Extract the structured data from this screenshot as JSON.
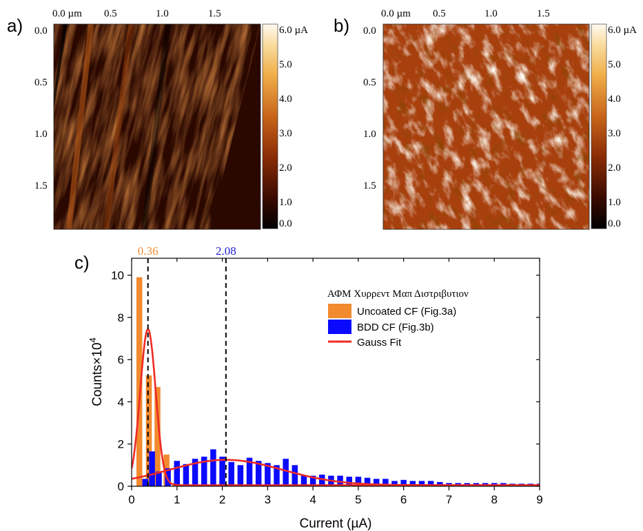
{
  "panels": {
    "a": {
      "label": "a)",
      "x_ticks": [
        "0.0 µm",
        "0.5",
        "1.0",
        "1.5"
      ],
      "y_ticks": [
        "0.0",
        "0.5",
        "1.0",
        "1.5"
      ],
      "colorbar_ticks": [
        "6.0 µA",
        "5.0",
        "4.0",
        "3.0",
        "2.0",
        "1.0",
        "0.0"
      ],
      "colorbar_values": [
        6.0,
        5.0,
        4.0,
        3.0,
        2.0,
        1.0,
        0.0
      ]
    },
    "b": {
      "label": "b)",
      "x_ticks": [
        "0.0 µm",
        "0.5",
        "1.0",
        "1.5"
      ],
      "y_ticks": [
        "0.0",
        "0.5",
        "1.0",
        "1.5"
      ],
      "colorbar_ticks": [
        "6.0 µA",
        "5.0",
        "4.0",
        "3.0",
        "2.0",
        "1.0",
        "0.0"
      ],
      "colorbar_values": [
        6.0,
        5.0,
        4.0,
        3.0,
        2.0,
        1.0,
        0.0
      ]
    },
    "c": {
      "label": "c)"
    }
  },
  "colors": {
    "uncoated": "#f28a2e",
    "bdd": "#0a0aff",
    "gauss": "#ee2a24",
    "peak_uncoated": "#f28a2e",
    "peak_bdd": "#2020d0",
    "map_dark": "#1a0500",
    "map_mid": "#a8400e",
    "map_light": "#fdf3e2"
  },
  "chart_data": {
    "type": "bar",
    "xlabel": "Current (µA)",
    "ylabel": "Counts×10",
    "ylabel_superscript": "4",
    "xlim": [
      0,
      9
    ],
    "ylim": [
      0,
      10.8
    ],
    "x_ticks": [
      0,
      1,
      2,
      3,
      4,
      5,
      6,
      7,
      8,
      9
    ],
    "y_ticks": [
      0,
      2,
      4,
      6,
      8,
      10
    ],
    "legend_title": "ΑΦΜ Χυρρεντ Μαπ Διστριβυτιον",
    "legend_position": "top-right",
    "series": [
      {
        "name": "Uncoated CF (Fig.3a)",
        "x": [
          0.17,
          0.38,
          0.57,
          0.77,
          0.97
        ],
        "values": [
          9.9,
          5.25,
          4.7,
          1.5,
          0.15
        ]
      },
      {
        "name": "BDD CF (Fig.3b)",
        "x": [
          0.3,
          0.45,
          0.6,
          0.8,
          1.0,
          1.2,
          1.4,
          1.6,
          1.8,
          2.0,
          2.2,
          2.4,
          2.6,
          2.8,
          3.0,
          3.2,
          3.4,
          3.6,
          3.8,
          4.0,
          4.2,
          4.4,
          4.6,
          4.8,
          5.0,
          5.2,
          5.4,
          5.6,
          5.8,
          6.0,
          6.2,
          6.4,
          6.6,
          6.8,
          7.0,
          7.2,
          7.4,
          7.6,
          7.8,
          8.0,
          8.2,
          8.4,
          8.6,
          8.8,
          9.0
        ],
        "values": [
          0.35,
          1.65,
          0.7,
          0.85,
          1.2,
          1.05,
          1.3,
          1.4,
          1.75,
          1.4,
          1.15,
          1.0,
          1.35,
          1.2,
          1.1,
          1.0,
          1.3,
          1.0,
          0.5,
          0.5,
          0.55,
          0.5,
          0.5,
          0.45,
          0.45,
          0.4,
          0.35,
          0.35,
          0.25,
          0.3,
          0.25,
          0.25,
          0.25,
          0.2,
          0.15,
          0.15,
          0.15,
          0.15,
          0.15,
          0.15,
          0.15,
          0.12,
          0.12,
          0.12,
          0.12
        ]
      }
    ],
    "fits": [
      {
        "name": "Gauss Fit",
        "baseline": 0.05,
        "amplitude": 7.4,
        "center": 0.36,
        "sigma": 0.17
      },
      {
        "name": "",
        "baseline": 0.05,
        "amplitude": 1.2,
        "center": 2.08,
        "sigma": 1.25
      }
    ],
    "reference_lines": [
      {
        "x": 0.36,
        "label": "0.36"
      },
      {
        "x": 2.08,
        "label": "2.08"
      }
    ],
    "grid": false
  }
}
